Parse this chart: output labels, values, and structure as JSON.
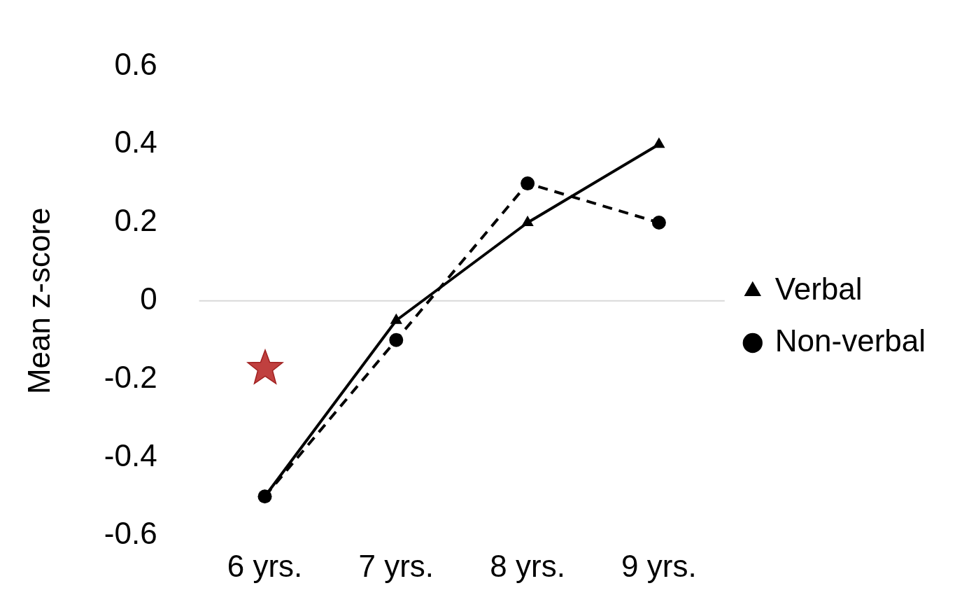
{
  "chart_data": {
    "type": "line",
    "ylabel": "Mean z-score",
    "categories": [
      "6 yrs.",
      "7 yrs.",
      "8 yrs.",
      "9 yrs."
    ],
    "series": [
      {
        "name": "Verbal",
        "color": "#000000",
        "values": [
          -0.5,
          -0.05,
          0.2,
          0.4
        ],
        "marker": "triangle",
        "line_style": "solid"
      },
      {
        "name": "Non-verbal",
        "color": "#000000",
        "values": [
          -0.5,
          -0.1,
          0.3,
          0.2
        ],
        "marker": "circle",
        "line_style": "dashed"
      }
    ],
    "ylim": [
      -0.6,
      0.6
    ],
    "yticks": [
      -0.6,
      -0.4,
      -0.2,
      0,
      0.2,
      0.4,
      0.6
    ],
    "ref_lines": [
      {
        "axis": "y",
        "value": 0,
        "color": "#d9d9d9"
      }
    ],
    "grid": false,
    "legend": "right"
  }
}
